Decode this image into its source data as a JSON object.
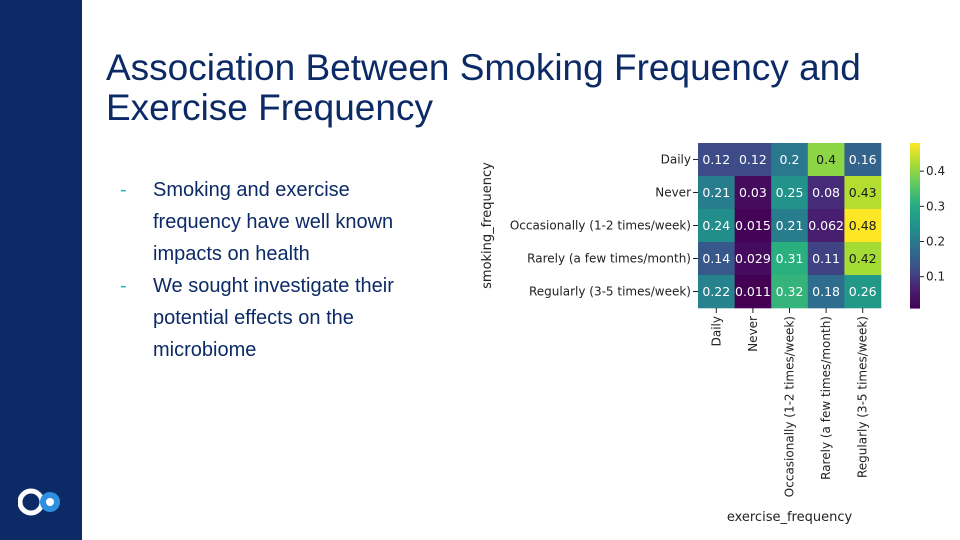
{
  "slide": {
    "title": "Association Between Smoking Frequency and Exercise Frequency",
    "bullets": [
      "Smoking and exercise frequency have well known impacts on health",
      "We sought investigate their potential effects on the microbiome"
    ],
    "bullet_marker": "-"
  },
  "colors": {
    "sidebar": "#0c2a66",
    "title_text": "#0c2a66",
    "bullet_marker": "#2bb7c9",
    "logo_blue": "#2f8fe0"
  },
  "logo_icon": "linked-circles-logo",
  "chart_data": {
    "type": "heatmap",
    "title": "",
    "xlabel": "exercise_frequency",
    "ylabel": "smoking_frequency",
    "x_categories": [
      "Daily",
      "Never",
      "Occasionally (1-2 times/week)",
      "Rarely (a few times/month)",
      "Regularly (3-5 times/week)"
    ],
    "y_categories": [
      "Daily",
      "Never",
      "Occasionally (1-2 times/week)",
      "Rarely (a few times/month)",
      "Regularly (3-5 times/week)"
    ],
    "values": [
      [
        0.12,
        0.12,
        0.2,
        0.4,
        0.16
      ],
      [
        0.21,
        0.03,
        0.25,
        0.08,
        0.43
      ],
      [
        0.24,
        0.015,
        0.21,
        0.062,
        0.48
      ],
      [
        0.14,
        0.029,
        0.31,
        0.11,
        0.42
      ],
      [
        0.22,
        0.011,
        0.32,
        0.18,
        0.26
      ]
    ],
    "value_labels": [
      [
        "0.12",
        "0.12",
        "0.2",
        "0.4",
        "0.16"
      ],
      [
        "0.21",
        "0.03",
        "0.25",
        "0.08",
        "0.43"
      ],
      [
        "0.24",
        "0.015",
        "0.21",
        "0.062",
        "0.48"
      ],
      [
        "0.14",
        "0.029",
        "0.31",
        "0.11",
        "0.42"
      ],
      [
        "0.22",
        "0.011",
        "0.32",
        "0.18",
        "0.26"
      ]
    ],
    "colormap": "viridis",
    "color_range": [
      0.011,
      0.48
    ],
    "colorbar_ticks": [
      0.1,
      0.2,
      0.3,
      0.4
    ],
    "colorbar_tick_labels": [
      "0.1",
      "0.2",
      "0.3",
      "0.4"
    ],
    "grid": false,
    "legend": "colorbar-right"
  }
}
